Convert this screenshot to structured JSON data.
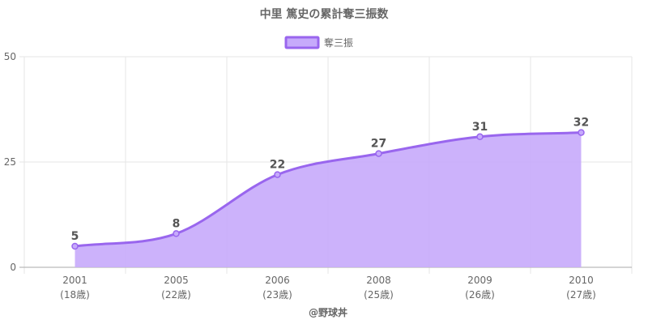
{
  "chart_data": {
    "type": "area",
    "title": "中里 篤史の累計奪三振数",
    "categories": [
      "2001",
      "2005",
      "2006",
      "2008",
      "2009",
      "2010"
    ],
    "sub_labels": [
      "(18歳)",
      "(22歳)",
      "(23歳)",
      "(25歳)",
      "(26歳)",
      "(27歳)"
    ],
    "series": [
      {
        "name": "奪三振",
        "values": [
          5,
          8,
          22,
          27,
          31,
          32
        ]
      }
    ],
    "data_labels": [
      "5",
      "8",
      "22",
      "27",
      "31",
      "32"
    ],
    "y_ticks": [
      "0",
      "25",
      "50"
    ],
    "ylim": [
      0,
      50
    ],
    "grid": true,
    "legend_position": "top",
    "colors": {
      "line": "#9966ee",
      "fill": "#c6aafb",
      "grid": "#e6e6e6",
      "axis": "#aaaaaa"
    }
  },
  "footer": {
    "credit": "@野球丼"
  }
}
